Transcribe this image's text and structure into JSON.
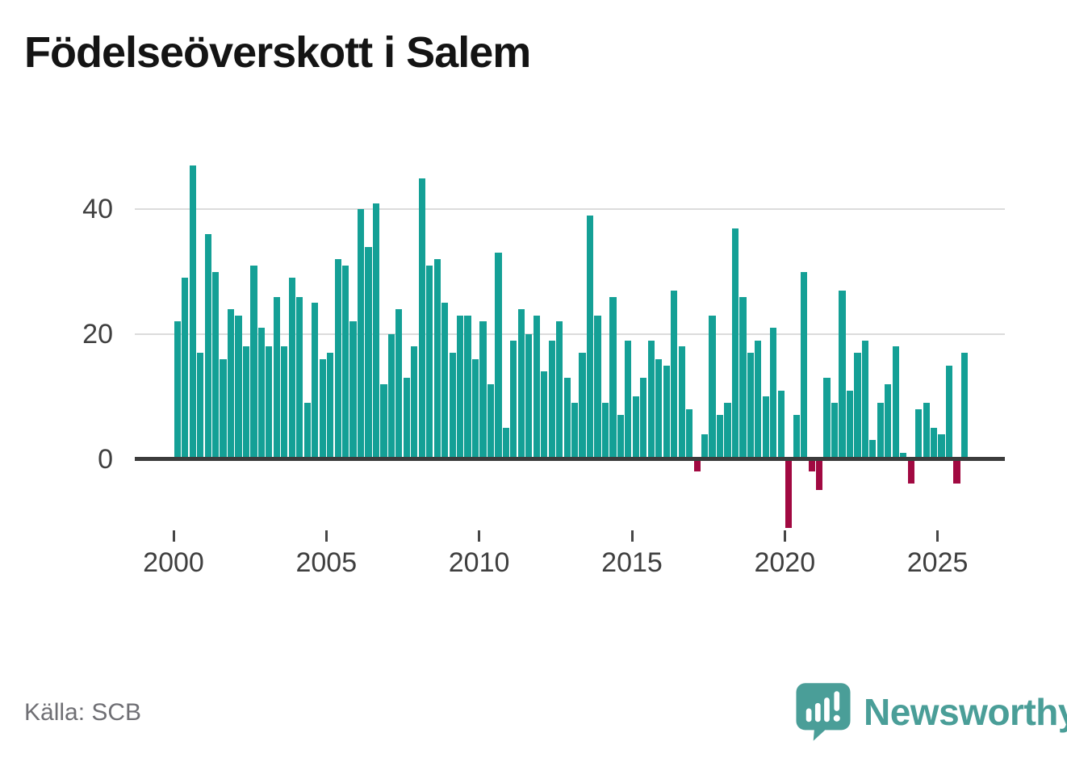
{
  "title": "Födelseöverskott i Salem",
  "source_note": "Källa: SCB",
  "branding": {
    "name": "Newsworthy"
  },
  "colors": {
    "bar_positive": "#14a096",
    "bar_negative": "#a10941",
    "grid": "#dcdcdc",
    "axis": "#3c3c3c",
    "tick_label": "#3f3f3f",
    "title_text": "#141414",
    "source_text": "#6f6f74",
    "brand": "#4a9e98"
  },
  "chart_data": {
    "type": "bar",
    "title": "Födelseöverskott i Salem",
    "x_unit": "quarter",
    "first_period": "2000 Q1",
    "last_period": "2025 Q4",
    "grid": "horizontal",
    "legend": "none",
    "y_ticks": [
      0,
      20,
      40
    ],
    "ylim": [
      -13,
      50
    ],
    "x_tick_labels": [
      "2000",
      "2005",
      "2010",
      "2015",
      "2020",
      "2025"
    ],
    "values_by_year": {
      "2000": [
        22,
        29,
        47,
        17
      ],
      "2001": [
        36,
        30,
        16,
        24
      ],
      "2002": [
        23,
        18,
        31,
        21
      ],
      "2003": [
        18,
        26,
        18,
        29
      ],
      "2004": [
        26,
        9,
        25,
        16
      ],
      "2005": [
        17,
        32,
        31,
        22
      ],
      "2006": [
        40,
        34,
        41,
        12
      ],
      "2007": [
        20,
        24,
        13,
        18
      ],
      "2008": [
        45,
        31,
        32,
        25
      ],
      "2009": [
        17,
        23,
        23,
        16
      ],
      "2010": [
        22,
        12,
        33,
        5
      ],
      "2011": [
        19,
        24,
        20,
        23
      ],
      "2012": [
        14,
        19,
        22,
        13
      ],
      "2013": [
        9,
        17,
        39,
        23
      ],
      "2014": [
        9,
        26,
        7,
        19
      ],
      "2015": [
        10,
        13,
        19,
        16
      ],
      "2016": [
        15,
        27,
        18,
        8
      ],
      "2017": [
        -2,
        4,
        23,
        7
      ],
      "2018": [
        9,
        37,
        26,
        17
      ],
      "2019": [
        19,
        10,
        21,
        11
      ],
      "2020": [
        -11,
        7,
        30,
        -2
      ],
      "2021": [
        -5,
        13,
        9,
        27
      ],
      "2022": [
        11,
        17,
        19,
        3
      ],
      "2023": [
        9,
        12,
        18,
        1
      ],
      "2024": [
        -4,
        8,
        9,
        5
      ],
      "2025": [
        4,
        15,
        -4,
        17
      ]
    }
  }
}
